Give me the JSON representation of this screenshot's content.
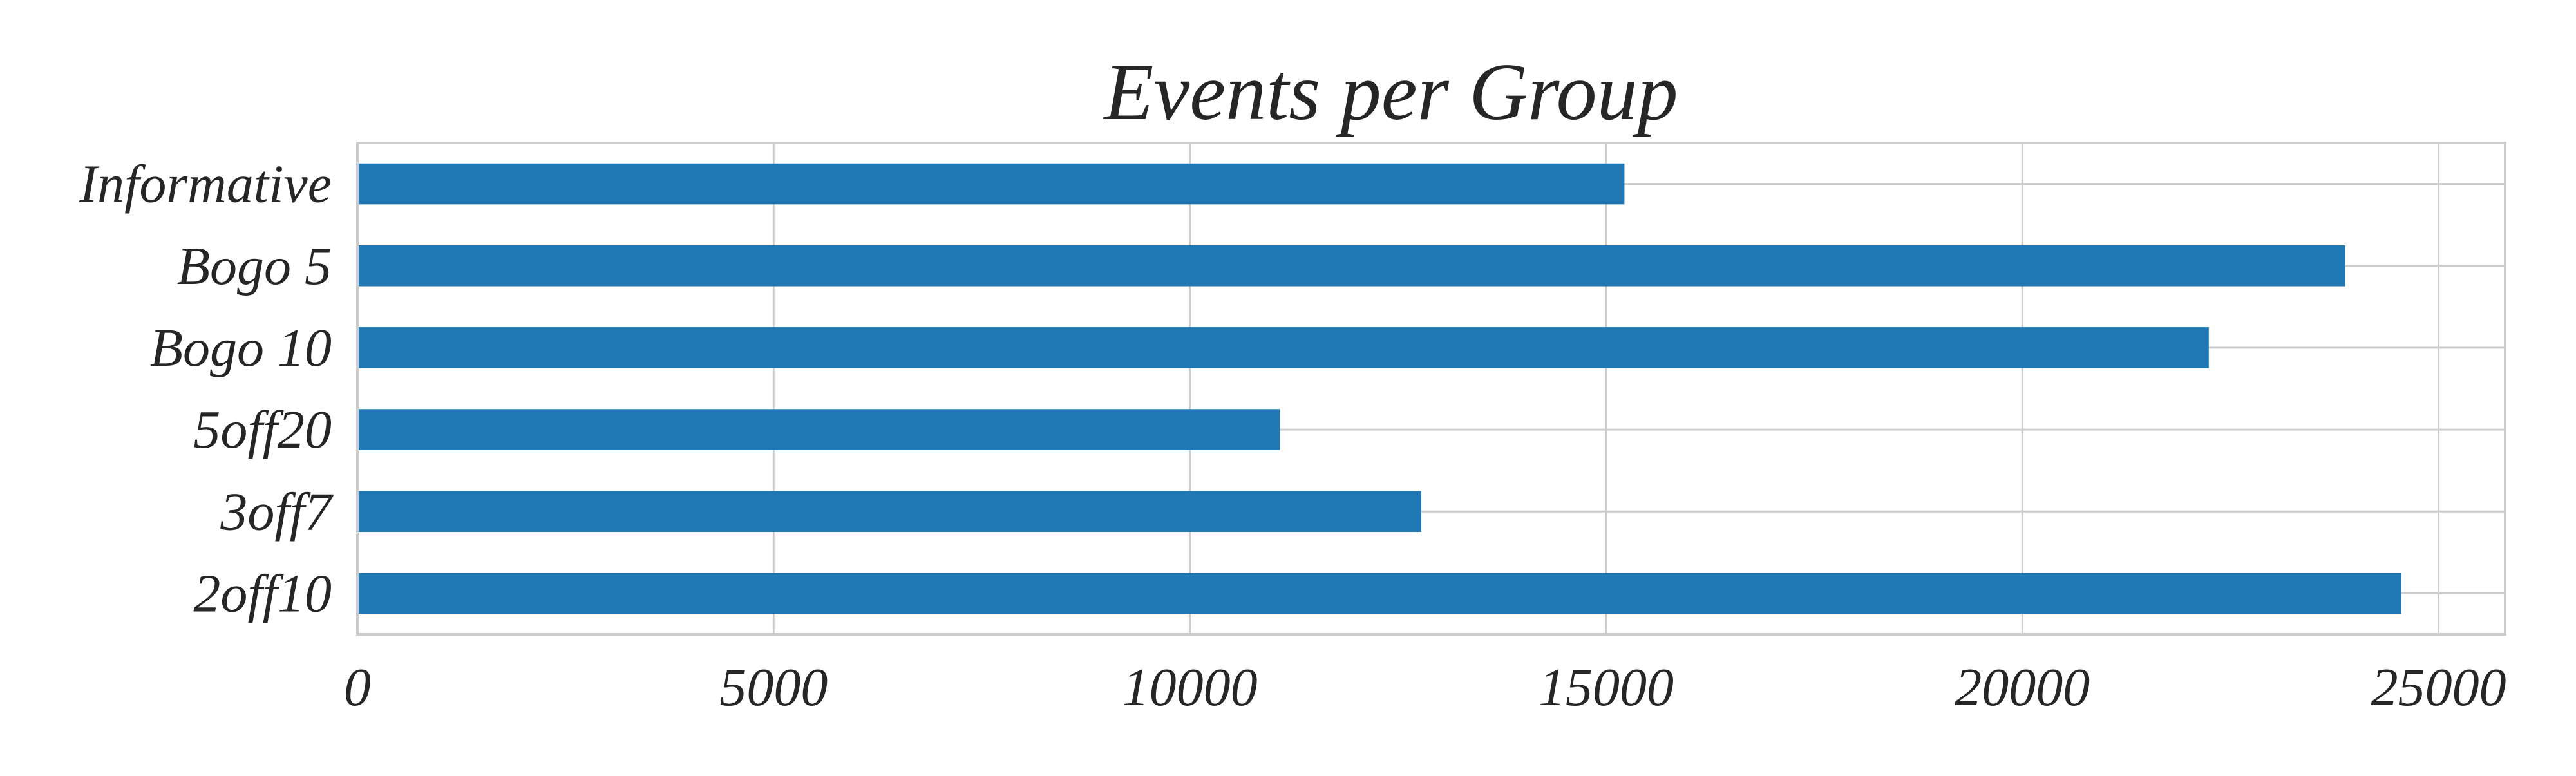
{
  "chart_data": {
    "type": "bar",
    "orientation": "horizontal",
    "title": "Events per Group",
    "xlabel": "",
    "ylabel": "",
    "categories": [
      "2off10",
      "3off7",
      "5off20",
      "Bogo 10",
      "Bogo 5",
      "Informative"
    ],
    "values": [
      24550,
      12780,
      11080,
      22240,
      23880,
      15220
    ],
    "xlim": [
      0,
      25800
    ],
    "xticks": [
      0,
      5000,
      10000,
      15000,
      20000,
      25000
    ],
    "xtick_labels": [
      "0",
      "5000",
      "10000",
      "15000",
      "20000",
      "25000"
    ],
    "grid": true,
    "legend": "none",
    "colors": {
      "bar": "#1f77b4",
      "grid": "#cccccc",
      "text": "#262626",
      "background": "#ffffff"
    }
  }
}
